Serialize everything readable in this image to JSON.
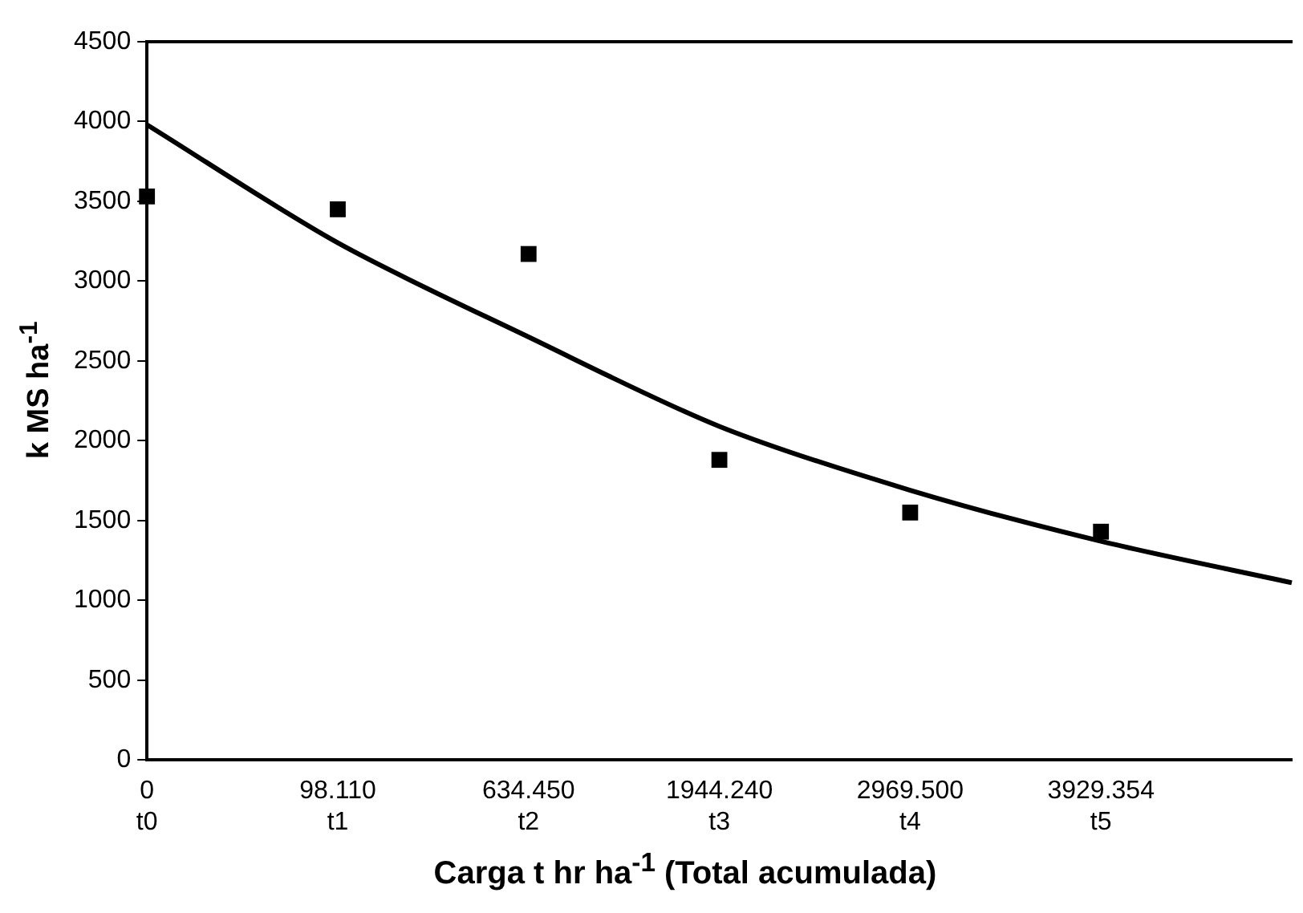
{
  "chart_data": {
    "type": "line",
    "xlabel": "Carga t hr ha$^{-1}$ (Total acumulada)",
    "ylabel": "k MS ha$^{-1}$",
    "categories": [
      "0\nt0",
      "98.110\nt1",
      "634.450\nt2",
      "1944.240\nt3",
      "2969.500\nt4",
      "3929.354\nt5",
      null
    ],
    "series": [
      {
        "type": "scatter",
        "color": "#000000",
        "marker": "square",
        "values": [
          3530,
          3450,
          3170,
          1880,
          1550,
          1430,
          null
        ]
      },
      {
        "type": "line",
        "color": "#000000",
        "marker": "none",
        "line_style": "solid",
        "values": [
          3980,
          3240,
          2650,
          2090,
          1690,
          1370,
          1110
        ]
      }
    ],
    "ylim": [
      0,
      4500
    ],
    "yticks": [
      0,
      500,
      1000,
      1500,
      2000,
      2500,
      3000,
      3500,
      4000,
      4500
    ],
    "grid": false,
    "legend": false
  }
}
